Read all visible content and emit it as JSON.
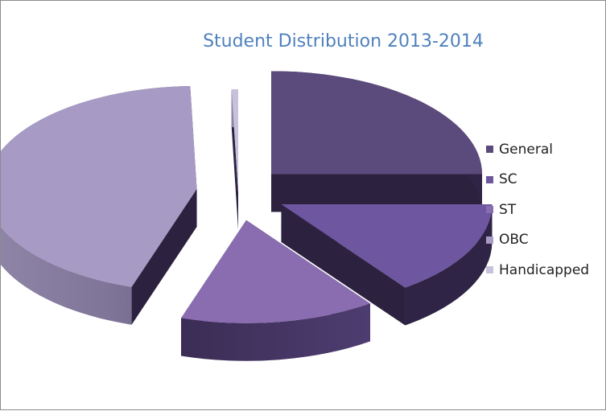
{
  "chart_data": {
    "type": "pie",
    "style": "3d-exploded",
    "title": "Student Distribution 2013-2014",
    "legend_position": "right",
    "categories": [
      "General",
      "SC",
      "ST",
      "OBC",
      "Handicapped"
    ],
    "values": [
      25,
      15,
      15,
      44.5,
      0.5
    ],
    "colors": [
      "#5b4a7c",
      "#6e56a0",
      "#8a6cb0",
      "#a79ac4",
      "#c8c1dc"
    ]
  }
}
